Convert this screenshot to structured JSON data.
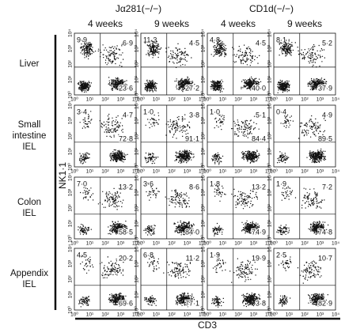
{
  "headers": {
    "groups": [
      "Jα281(−/−)",
      "CD1d(−/−)"
    ],
    "columns": [
      "4 weeks",
      "9 weeks",
      "4 weeks",
      "9 weeks"
    ]
  },
  "rows": [
    {
      "label": [
        "Liver"
      ],
      "panels": [
        [
          "9·9",
          "6·9",
          "23·6"
        ],
        [
          "11·3",
          "4·5",
          "27·2"
        ],
        [
          "4·8",
          "4·5",
          "40·0"
        ],
        [
          "8·1",
          "5·2",
          "37·9"
        ]
      ]
    },
    {
      "label": [
        "Small",
        "intestine",
        "IEL"
      ],
      "panels": [
        [
          "3·4",
          "4·7",
          "72·8"
        ],
        [
          "1·0",
          "3·8",
          "91·1"
        ],
        [
          "1·0",
          "5·1",
          "84·4"
        ],
        [
          "0·4",
          "4·9",
          "89·5"
        ]
      ]
    },
    {
      "label": [
        "Colon",
        "IEL"
      ],
      "panels": [
        [
          "7·0",
          "13·2",
          "58·5"
        ],
        [
          "3·6",
          "8·6",
          "84·0"
        ],
        [
          "1·8",
          "13·2",
          "74·9"
        ],
        [
          "1·9",
          "7·2",
          "74·8"
        ]
      ]
    },
    {
      "label": [
        "Appendix",
        "IEL"
      ],
      "panels": [
        [
          "4·5",
          "20·2",
          "69·6"
        ],
        [
          "6·8",
          "11·2",
          "77·1"
        ],
        [
          "1·9",
          "19·9",
          "3·8"
        ],
        [
          "2·5",
          "10·7",
          "82·9"
        ]
      ]
    }
  ],
  "axes": {
    "x_label": "CD3",
    "y_label": "NK1·1",
    "tick_labels": [
      "10⁰",
      "10¹",
      "10²",
      "10³",
      "10⁴"
    ]
  }
}
